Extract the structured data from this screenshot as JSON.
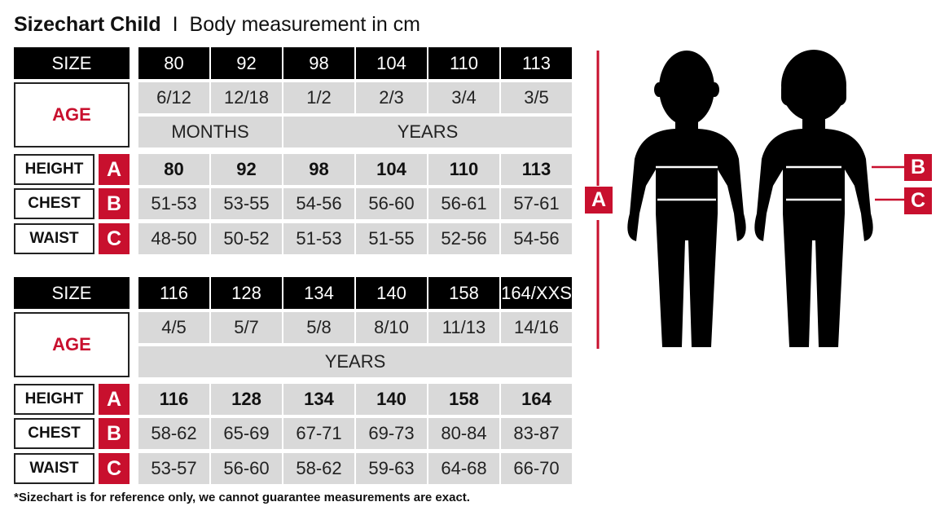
{
  "title": {
    "main": "Sizechart Child",
    "separator": "I",
    "subtitle": "Body measurement in cm"
  },
  "labels": {
    "size": "SIZE",
    "age": "AGE",
    "height": "HEIGHT",
    "chest": "CHEST",
    "waist": "WAIST"
  },
  "letters": {
    "height": "A",
    "chest": "B",
    "waist": "C"
  },
  "tables": [
    {
      "sizes": [
        "80",
        "92",
        "98",
        "104",
        "110",
        "113"
      ],
      "ages": [
        "6/12",
        "12/18",
        "1/2",
        "2/3",
        "3/4",
        "3/5"
      ],
      "age_units": [
        {
          "label": "MONTHS",
          "span": 2
        },
        {
          "label": "YEARS",
          "span": 4
        }
      ],
      "height": [
        "80",
        "92",
        "98",
        "104",
        "110",
        "113"
      ],
      "chest": [
        "51-53",
        "53-55",
        "54-56",
        "56-60",
        "56-61",
        "57-61"
      ],
      "waist": [
        "48-50",
        "50-52",
        "51-53",
        "51-55",
        "52-56",
        "54-56"
      ]
    },
    {
      "sizes": [
        "116",
        "128",
        "134",
        "140",
        "158",
        "164/XXS"
      ],
      "ages": [
        "4/5",
        "5/7",
        "5/8",
        "8/10",
        "11/13",
        "14/16"
      ],
      "age_units": [
        {
          "label": "YEARS",
          "span": 6
        }
      ],
      "height": [
        "116",
        "128",
        "134",
        "140",
        "158",
        "164"
      ],
      "chest": [
        "58-62",
        "65-69",
        "67-71",
        "69-73",
        "80-84",
        "83-87"
      ],
      "waist": [
        "53-57",
        "56-60",
        "58-62",
        "59-63",
        "64-68",
        "66-70"
      ]
    }
  ],
  "footnote": "*Sizechart is for reference only, we cannot guarantee measurements are exact.",
  "colors": {
    "accent": "#c8102e",
    "header": "#000000",
    "cell": "#d9d9d9"
  }
}
